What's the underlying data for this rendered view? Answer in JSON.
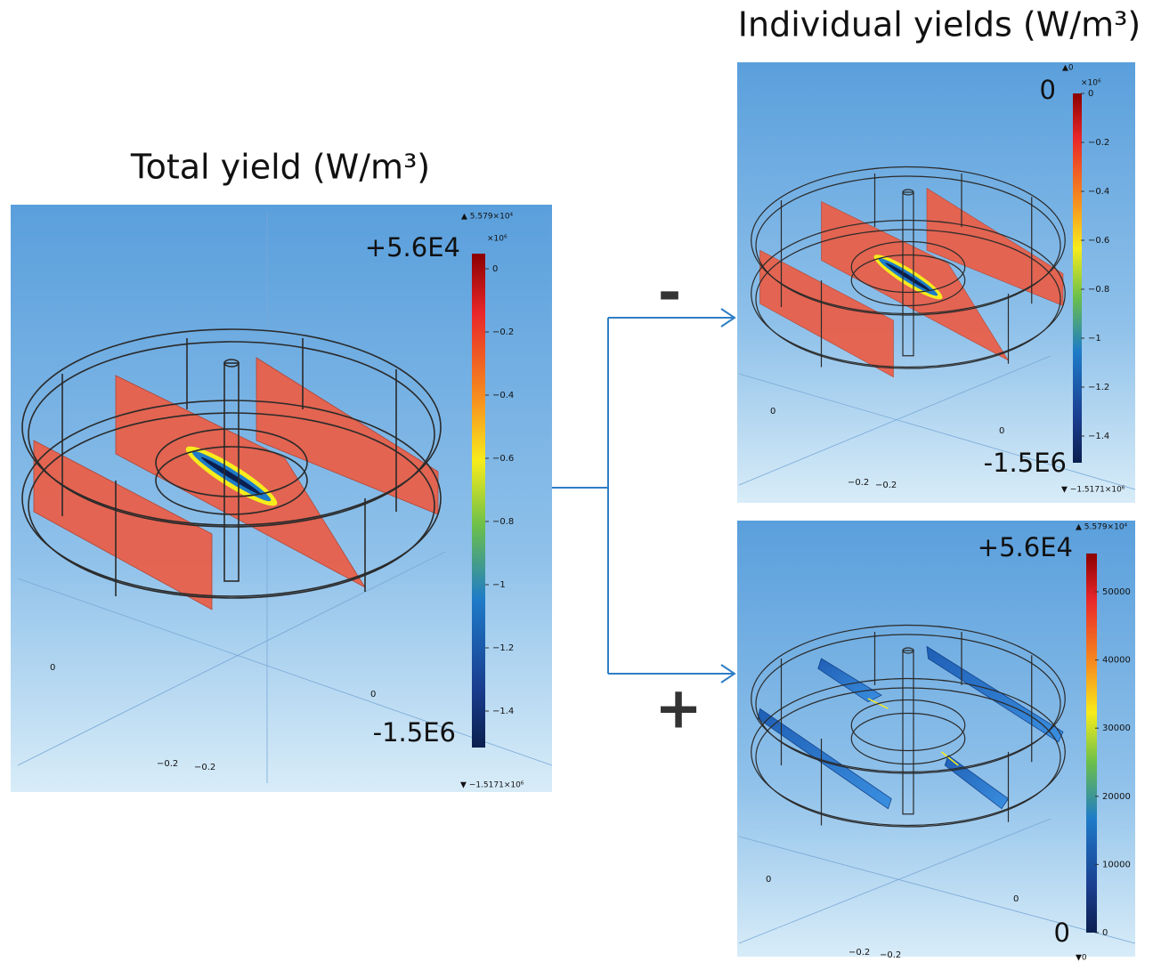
{
  "total_panel": {
    "title": "Total  yield (W/m³)",
    "max_label": "▲ 5.579×10⁴",
    "max_text": "+5.6E4",
    "scale_label": "×10⁶",
    "ticks": [
      "0",
      "−0.2",
      "−0.4",
      "−0.6",
      "−0.8",
      "−1",
      "−1.2",
      "−1.4"
    ],
    "min_text": "-1.5E6",
    "min_label": "▼ −1.5171×10⁶",
    "axis_labels": [
      "0",
      "0",
      "−0.2",
      "−0.2"
    ]
  },
  "branches": {
    "negative_sign": "-",
    "positive_sign": "+"
  },
  "individual": {
    "title": "Individual yields (W/m³)",
    "negative_panel": {
      "max_label": "▲0",
      "max_text": "0",
      "scale_label": "×10⁶",
      "ticks": [
        "0",
        "−0.2",
        "−0.4",
        "−0.6",
        "−0.8",
        "−1",
        "−1.2",
        "−1.4"
      ],
      "min_text": "-1.5E6",
      "min_label": "▼ −1.5171×10⁶",
      "axis_labels": [
        "0",
        "0",
        "−0.2",
        "−0.2"
      ]
    },
    "positive_panel": {
      "max_label": "▲ 5.579×10⁴",
      "max_text": "+5.6E4",
      "ticks": [
        "50000",
        "40000",
        "30000",
        "20000",
        "10000",
        "0"
      ],
      "min_text": "0",
      "min_label": "▼0",
      "axis_labels": [
        "0",
        "0",
        "−0.2",
        "−0.2"
      ]
    }
  }
}
